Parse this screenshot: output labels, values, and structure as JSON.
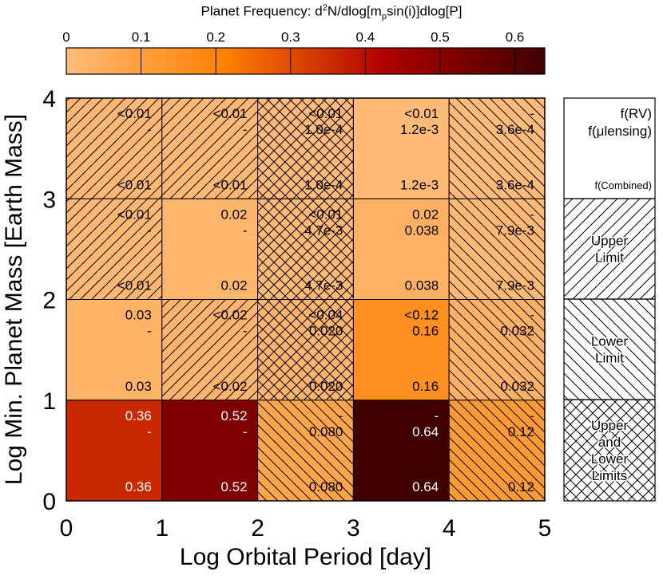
{
  "colorbar": {
    "title_main": "Planet Frequency: d",
    "title_sup": "2",
    "title_mid1": "N/dlog[m",
    "title_sub": "p",
    "title_mid2": "sin(i)]dlog[P]",
    "ticks": [
      {
        "value": 0,
        "label": "0"
      },
      {
        "value": 0.1,
        "label": "0.1"
      },
      {
        "value": 0.2,
        "label": "0.2"
      },
      {
        "value": 0.3,
        "label": "0.3"
      },
      {
        "value": 0.4,
        "label": "0.4"
      },
      {
        "value": 0.5,
        "label": "0.5"
      },
      {
        "value": 0.6,
        "label": "0.6"
      }
    ],
    "range": [
      0,
      0.64
    ]
  },
  "colors": {
    "stops": [
      "#ffbb77",
      "#ff8000",
      "#b00000",
      "#400000"
    ],
    "hatch": "#000000"
  },
  "chart_data": {
    "type": "heatmap",
    "xlabel": "Log Orbital Period [day]",
    "ylabel": "Log Min. Planet Mass [Earth Mass]",
    "xlim": [
      0,
      5
    ],
    "ylim": [
      0,
      4
    ],
    "x_edges": [
      0,
      1,
      2,
      3,
      4,
      5
    ],
    "y_edges": [
      0,
      1,
      2,
      3,
      4
    ],
    "xticks": [
      "0",
      "1",
      "2",
      "3",
      "4",
      "5"
    ],
    "yticks": [
      "0",
      "1",
      "2",
      "3",
      "4"
    ],
    "cells": [
      {
        "x": [
          0,
          1
        ],
        "y": [
          3,
          4
        ],
        "value": 0.01,
        "rv": "<0.01",
        "ml": "-",
        "comb": "<0.01",
        "hatch": "upper"
      },
      {
        "x": [
          1,
          2
        ],
        "y": [
          3,
          4
        ],
        "value": 0.01,
        "rv": "<0.01",
        "ml": "-",
        "comb": "<0.01",
        "hatch": "upper"
      },
      {
        "x": [
          2,
          3
        ],
        "y": [
          3,
          4
        ],
        "value": 0.0001,
        "rv": "<0.01",
        "ml": "1.0e-4",
        "comb": "1.0e-4",
        "hatch": "both"
      },
      {
        "x": [
          3,
          4
        ],
        "y": [
          3,
          4
        ],
        "value": 0.0012,
        "rv": "<0.01",
        "ml": "1.2e-3",
        "comb": "1.2e-3",
        "hatch": "none"
      },
      {
        "x": [
          4,
          5
        ],
        "y": [
          3,
          4
        ],
        "value": 0.00036,
        "rv": "-",
        "ml": "3.6e-4",
        "comb": "3.6e-4",
        "hatch": "lower"
      },
      {
        "x": [
          0,
          1
        ],
        "y": [
          2,
          3
        ],
        "value": 0.01,
        "rv": "<0.01",
        "ml": "-",
        "comb": "<0.01",
        "hatch": "upper"
      },
      {
        "x": [
          1,
          2
        ],
        "y": [
          2,
          3
        ],
        "value": 0.02,
        "rv": "0.02",
        "ml": "-",
        "comb": "0.02",
        "hatch": "none"
      },
      {
        "x": [
          2,
          3
        ],
        "y": [
          2,
          3
        ],
        "value": 0.0047,
        "rv": "<0.01",
        "ml": "4.7e-3",
        "comb": "4.7e-3",
        "hatch": "both"
      },
      {
        "x": [
          3,
          4
        ],
        "y": [
          2,
          3
        ],
        "value": 0.038,
        "rv": "0.02",
        "ml": "0.038",
        "comb": "0.038",
        "hatch": "none"
      },
      {
        "x": [
          4,
          5
        ],
        "y": [
          2,
          3
        ],
        "value": 0.0079,
        "rv": "-",
        "ml": "7.9e-3",
        "comb": "7.9e-3",
        "hatch": "lower"
      },
      {
        "x": [
          0,
          1
        ],
        "y": [
          1,
          2
        ],
        "value": 0.03,
        "rv": "0.03",
        "ml": "-",
        "comb": "0.03",
        "hatch": "none"
      },
      {
        "x": [
          1,
          2
        ],
        "y": [
          1,
          2
        ],
        "value": 0.02,
        "rv": "<0.02",
        "ml": "-",
        "comb": "<0.02",
        "hatch": "upper"
      },
      {
        "x": [
          2,
          3
        ],
        "y": [
          1,
          2
        ],
        "value": 0.02,
        "rv": "<0.04",
        "ml": "0.020",
        "comb": "0.020",
        "hatch": "both"
      },
      {
        "x": [
          3,
          4
        ],
        "y": [
          1,
          2
        ],
        "value": 0.16,
        "rv": "<0.12",
        "ml": "0.16",
        "comb": "0.16",
        "hatch": "none"
      },
      {
        "x": [
          4,
          5
        ],
        "y": [
          1,
          2
        ],
        "value": 0.032,
        "rv": "-",
        "ml": "0.032",
        "comb": "0.032",
        "hatch": "lower"
      },
      {
        "x": [
          0,
          1
        ],
        "y": [
          0,
          1
        ],
        "value": 0.36,
        "rv": "0.36",
        "ml": "-",
        "comb": "0.36",
        "hatch": "none"
      },
      {
        "x": [
          1,
          2
        ],
        "y": [
          0,
          1
        ],
        "value": 0.52,
        "rv": "0.52",
        "ml": "-",
        "comb": "0.52",
        "hatch": "none"
      },
      {
        "x": [
          2,
          3
        ],
        "y": [
          0,
          1
        ],
        "value": 0.08,
        "rv": "-",
        "ml": "0.080",
        "comb": "0.080",
        "hatch": "lower"
      },
      {
        "x": [
          3,
          4
        ],
        "y": [
          0,
          1
        ],
        "value": 0.64,
        "rv": "-",
        "ml": "0.64",
        "comb": "0.64",
        "hatch": "none"
      },
      {
        "x": [
          4,
          5
        ],
        "y": [
          0,
          1
        ],
        "value": 0.12,
        "rv": "-",
        "ml": "0.12",
        "comb": "0.12",
        "hatch": "lower"
      }
    ]
  },
  "legend": {
    "rv": "f(RV)",
    "ml_prefix": "f(",
    "ml_mu": "μ",
    "ml_suffix": "lensing)",
    "combined": "f(Combined)",
    "upper": [
      "Upper",
      "Limit"
    ],
    "lower": [
      "Lower",
      "Limit"
    ],
    "both": [
      "Upper",
      "and",
      "Lower",
      "Limits"
    ]
  }
}
